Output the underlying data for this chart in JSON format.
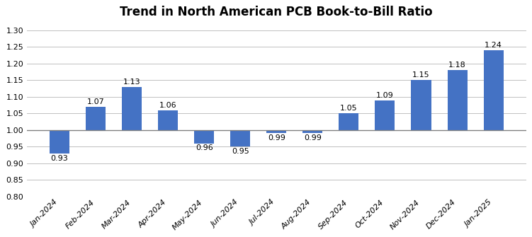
{
  "title": "Trend in North American PCB Book-to-Bill Ratio",
  "categories": [
    "Jan-2024",
    "Feb-2024",
    "Mar-2024",
    "Apr-2024",
    "May-2024",
    "Jun-2024",
    "Jul-2024",
    "Aug-2024",
    "Sep-2024",
    "Oct-2024",
    "Nov-2024",
    "Dec-2024",
    "Jan-2025"
  ],
  "values": [
    0.93,
    1.07,
    1.13,
    1.06,
    0.96,
    0.95,
    0.99,
    0.99,
    1.05,
    1.09,
    1.15,
    1.18,
    1.24
  ],
  "bar_color": "#4472C4",
  "ylim": [
    0.8,
    1.32
  ],
  "yticks": [
    0.8,
    0.85,
    0.9,
    0.95,
    1.0,
    1.05,
    1.1,
    1.15,
    1.2,
    1.25,
    1.3
  ],
  "label_fontsize": 8.0,
  "title_fontsize": 12,
  "tick_fontsize": 8.0,
  "background_color": "#ffffff",
  "grid_color": "#c0c0c0",
  "reference_line_y": 1.0,
  "reference_line_color": "#808080",
  "bar_base": 1.0
}
